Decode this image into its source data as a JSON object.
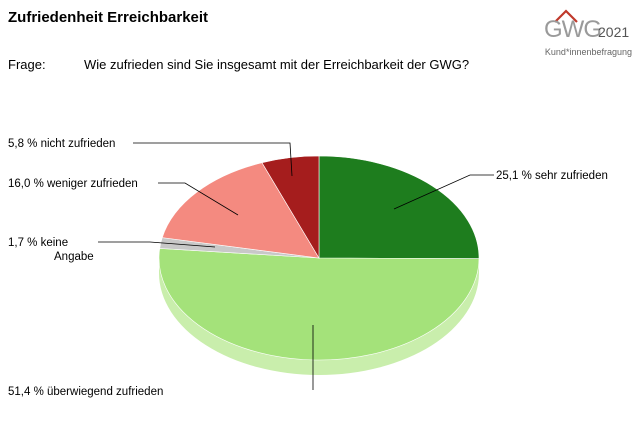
{
  "header": {
    "title": "Zufriedenheit Erreichbarkeit",
    "question_label": "Frage:",
    "question_text": "Wie zufrieden sind Sie insgesamt mit der Erreichbarkeit der GWG?"
  },
  "logo": {
    "brand": "GWG",
    "year": "2021",
    "subtitle": "Kund*innenbefragung",
    "brand_color": "#c0392b"
  },
  "chart_data": {
    "type": "pie",
    "title": "",
    "slices": [
      {
        "label": "sehr zufrieden",
        "value": 25.1,
        "value_text": "25,1 %",
        "color": "#1e7d1e",
        "side_color": "#15601a"
      },
      {
        "label": "überwiegend zufrieden",
        "value": 51.4,
        "value_text": "51,4 %",
        "color": "#a4e27a",
        "side_color": "#c9eeac"
      },
      {
        "label": "keine Angabe",
        "value": 1.7,
        "value_text": "1,7 %",
        "color": "#c8c8c8",
        "side_color": "#a9a9a9"
      },
      {
        "label": "weniger zufrieden",
        "value": 16.0,
        "value_text": "16,0 %",
        "color": "#f48a80",
        "side_color": "#d46d65"
      },
      {
        "label": "nicht zufrieden",
        "value": 5.8,
        "value_text": "5,8 %",
        "color": "#a51d1d",
        "side_color": "#7d1414"
      }
    ]
  }
}
